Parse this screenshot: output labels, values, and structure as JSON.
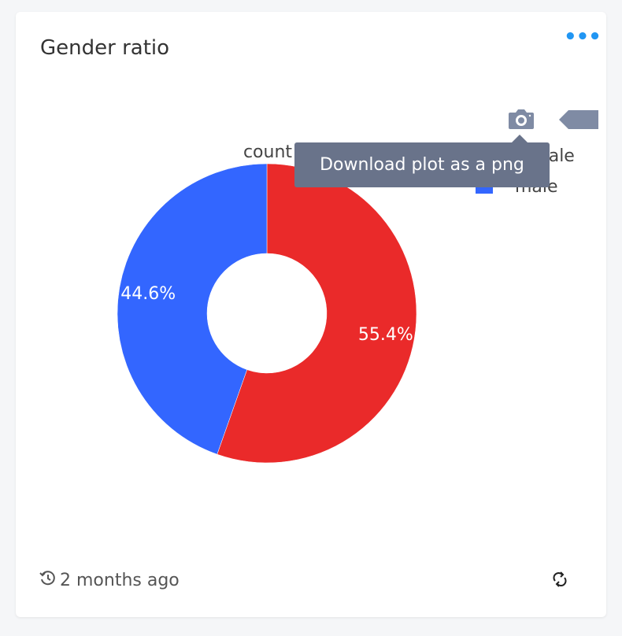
{
  "card": {
    "title": "Gender ratio",
    "menu_icon": "more-dots-icon",
    "updated": "2 months ago"
  },
  "modebar": {
    "tooltip": "Download plot as a png"
  },
  "chart_data": {
    "type": "pie",
    "hole": true,
    "title": "count",
    "labels": [
      "female",
      "male"
    ],
    "values": [
      55.4,
      44.6
    ],
    "text_labels": [
      "55.4%",
      "44.6%"
    ],
    "colors": [
      "#ea2a2a",
      "#3366ff"
    ],
    "legend_position": "top-right"
  }
}
